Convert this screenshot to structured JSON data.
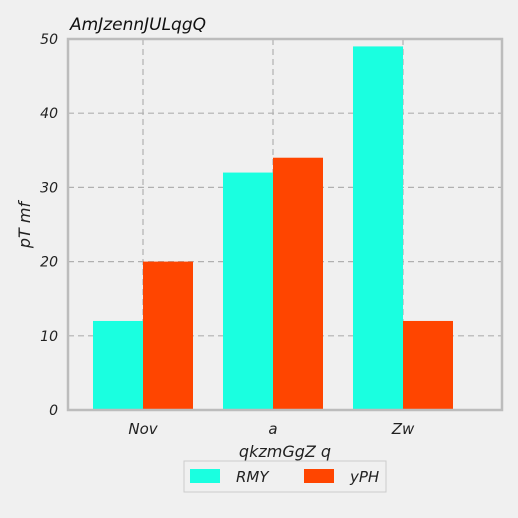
{
  "chart_data": {
    "type": "bar",
    "title": "AmJzennJULqgQ",
    "xlabel": "qkzmGgZ q",
    "ylabel": "pT mf",
    "categories": [
      "Nov",
      "a",
      "Zw"
    ],
    "series": [
      {
        "name": "RMY",
        "values": [
          12,
          32,
          49
        ],
        "color": "#1affe0"
      },
      {
        "name": "yPH",
        "values": [
          20,
          34,
          12
        ],
        "color": "#ff4500"
      }
    ],
    "ylim": [
      0,
      50
    ],
    "yticks": [
      "0",
      "10",
      "20",
      "30",
      "40",
      "50"
    ],
    "grid": true,
    "legend_position": "bottom-center"
  }
}
